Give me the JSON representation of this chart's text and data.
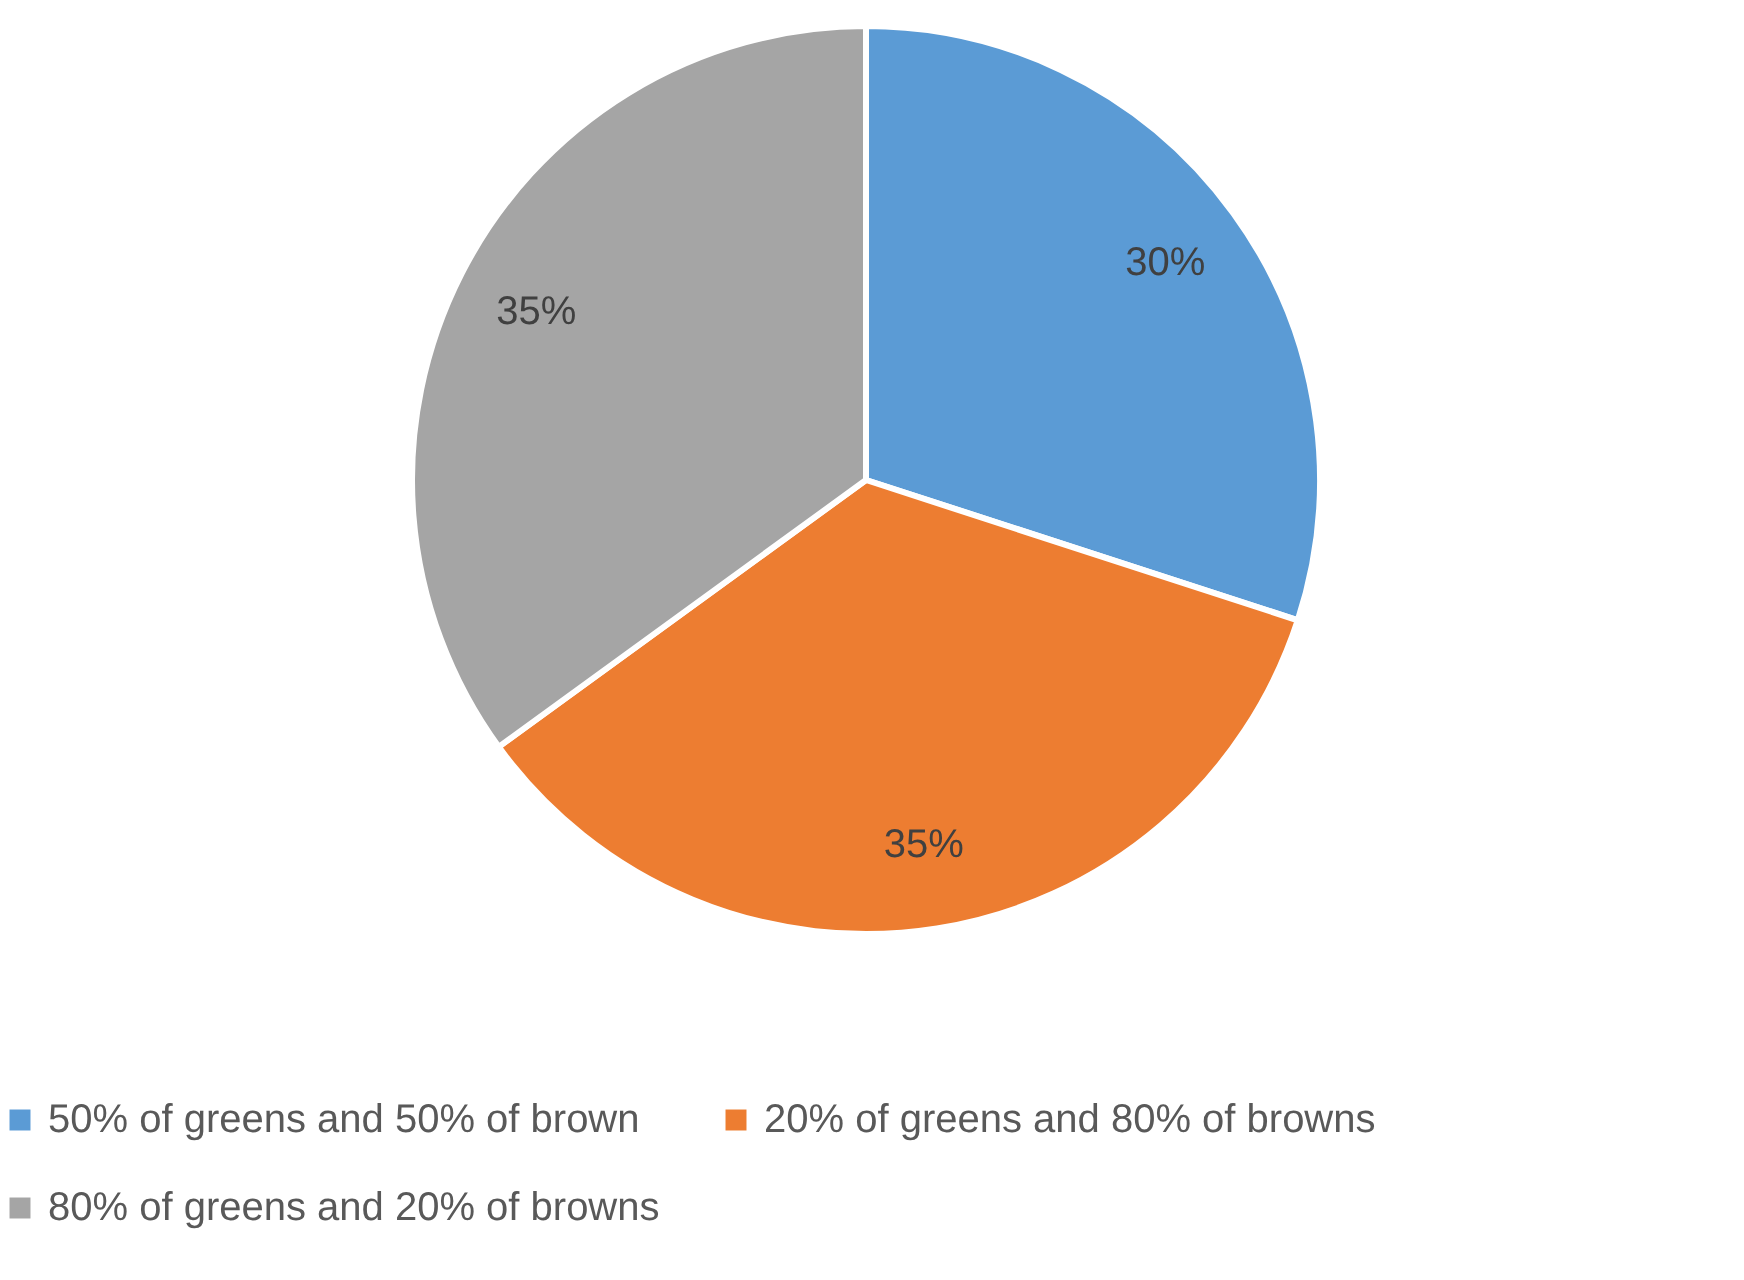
{
  "chart_data": {
    "type": "pie",
    "categories": [
      "50% of greens and 50% of brown",
      "20% of greens and 80% of browns",
      "80% of greens and 20% of browns"
    ],
    "values": [
      30,
      35,
      35
    ],
    "colors": [
      "#5b9bd5",
      "#ed7d31",
      "#a5a5a5"
    ],
    "value_labels": [
      "30%",
      "35%",
      "35%"
    ],
    "legend": "bottom"
  }
}
